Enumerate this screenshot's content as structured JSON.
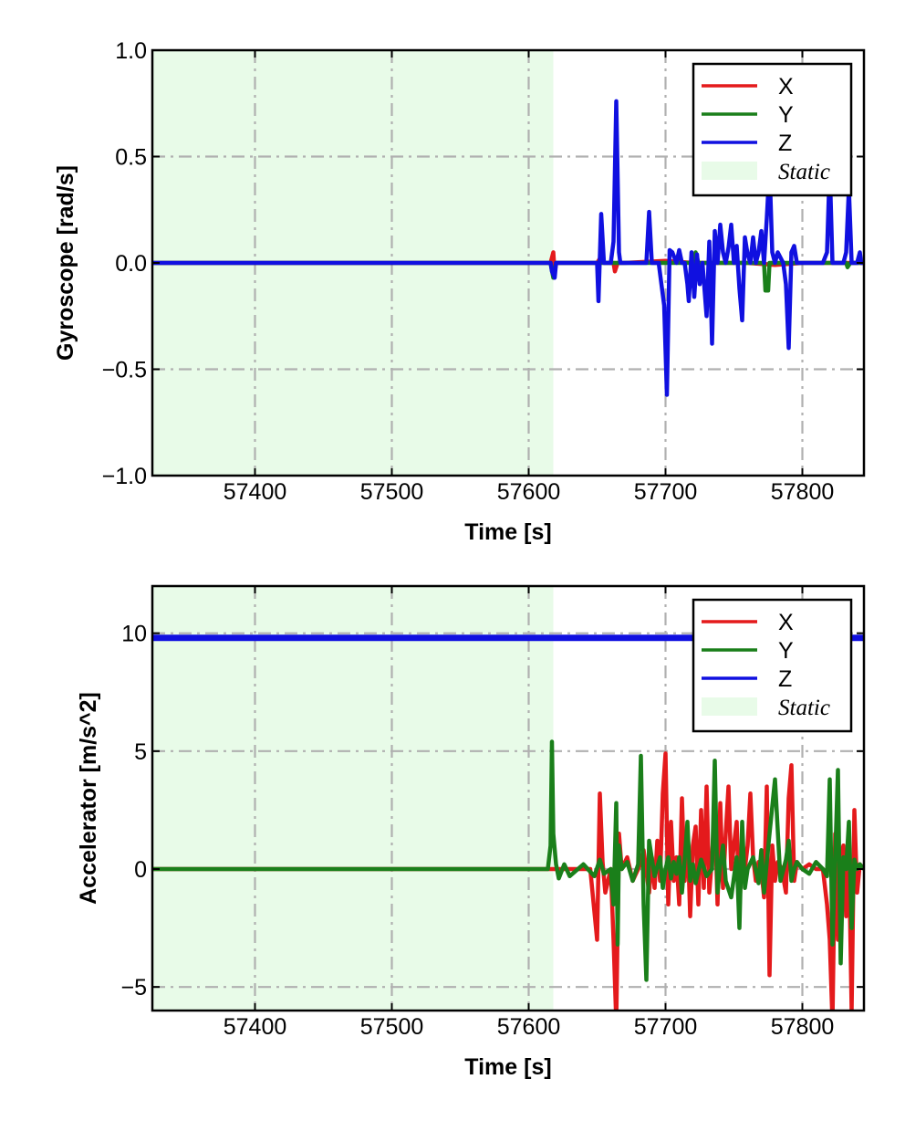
{
  "chart_data": [
    {
      "type": "line",
      "xlabel": "Time [s]",
      "ylabel": "Gyroscope [rad/s]",
      "xlim": [
        57325,
        57845
      ],
      "ylim": [
        -1.0,
        1.0
      ],
      "xticks": [
        57400,
        57500,
        57600,
        57700,
        57800
      ],
      "xtick_labels": [
        "57400",
        "57500",
        "57600",
        "57700",
        "57800"
      ],
      "yticks": [
        1.0,
        0.5,
        0.0,
        -0.5,
        -1.0
      ],
      "ytick_labels": [
        "1.0",
        "0.5",
        "0.0",
        "−0.5",
        "−1.0"
      ],
      "grid": true,
      "legend": "top-right",
      "legend_entries": [
        "X",
        "Y",
        "Z",
        "Static"
      ],
      "static_region": [
        57325,
        57618
      ],
      "series": [
        {
          "name": "X",
          "color": "#e41a1c",
          "x": [
            57325,
            57616,
            57618,
            57619,
            57620,
            57650,
            57652,
            57655,
            57662,
            57663,
            57665,
            57670,
            57700,
            57720,
            57740,
            57760,
            57780,
            57800,
            57820,
            57845
          ],
          "y": [
            0.0,
            0.0,
            0.05,
            -0.05,
            0.0,
            0.0,
            0.02,
            0.0,
            0.0,
            -0.04,
            0.0,
            0.0,
            0.01,
            0.0,
            0.0,
            0.0,
            -0.01,
            0.0,
            0.0,
            0.0
          ]
        },
        {
          "name": "Y",
          "color": "#1a7f1a",
          "x": [
            57325,
            57616,
            57618,
            57620,
            57700,
            57720,
            57722,
            57724,
            57760,
            57772,
            57773,
            57775,
            57776,
            57800,
            57832,
            57833,
            57835,
            57845
          ],
          "y": [
            0.0,
            0.0,
            -0.07,
            0.0,
            0.0,
            0.0,
            0.05,
            0.0,
            0.0,
            0.0,
            -0.13,
            -0.13,
            0.0,
            0.0,
            0.0,
            -0.02,
            0.0,
            0.0
          ],
          "color_hint": "green"
        },
        {
          "name": "Z",
          "color": "#1010e0",
          "x": [
            57325,
            57616,
            57617,
            57619,
            57620,
            57650,
            57651,
            57653,
            57655,
            57660,
            57662,
            57664,
            57666,
            57667,
            57670,
            57686,
            57688,
            57690,
            57692,
            57695,
            57699,
            57701,
            57703,
            57705,
            57708,
            57710,
            57712,
            57714,
            57716,
            57717,
            57719,
            57721,
            57723,
            57725,
            57727,
            57730,
            57732,
            57734,
            57736,
            57738,
            57740,
            57742,
            57744,
            57746,
            57748,
            57750,
            57752,
            57754,
            57756,
            57758,
            57760,
            57762,
            57764,
            57766,
            57768,
            57770,
            57772,
            57774,
            57776,
            57778,
            57780,
            57782,
            57786,
            57788,
            57790,
            57792,
            57794,
            57796,
            57800,
            57810,
            57815,
            57818,
            57820,
            57822,
            57825,
            57830,
            57832,
            57834,
            57836,
            57838,
            57840,
            57842,
            57843,
            57845
          ],
          "y": [
            0.0,
            0.0,
            -0.04,
            -0.07,
            0.0,
            0.0,
            -0.18,
            0.23,
            0.0,
            0.0,
            0.1,
            0.76,
            0.05,
            0.0,
            0.0,
            0.0,
            0.24,
            0.0,
            0.0,
            0.0,
            -0.2,
            -0.62,
            0.06,
            0.05,
            0.0,
            0.06,
            0.0,
            0.0,
            -0.1,
            -0.18,
            0.05,
            -0.16,
            0.04,
            -0.1,
            0.0,
            -0.25,
            0.1,
            -0.38,
            0.15,
            0.0,
            0.18,
            0.05,
            0.0,
            0.07,
            0.18,
            0.0,
            0.08,
            -0.12,
            -0.27,
            0.12,
            0.04,
            0.0,
            0.12,
            0.0,
            0.05,
            0.15,
            0.0,
            0.21,
            0.45,
            0.05,
            0.0,
            0.05,
            0.0,
            -0.1,
            -0.4,
            0.05,
            0.08,
            0.0,
            0.0,
            0.0,
            0.0,
            0.05,
            0.45,
            0.0,
            0.0,
            0.0,
            0.05,
            0.35,
            0.0,
            0.0,
            0.0,
            0.05,
            0.0,
            0.0
          ]
        }
      ]
    },
    {
      "type": "line",
      "xlabel": "Time [s]",
      "ylabel": "Accelerator [m/s^2]",
      "xlim": [
        57325,
        57845
      ],
      "ylim": [
        -6.0,
        12.0
      ],
      "xticks": [
        57400,
        57500,
        57600,
        57700,
        57800
      ],
      "xtick_labels": [
        "57400",
        "57500",
        "57600",
        "57700",
        "57800"
      ],
      "yticks": [
        10,
        5,
        0,
        -5
      ],
      "ytick_labels": [
        "10",
        "5",
        "0",
        "−5"
      ],
      "grid": true,
      "legend": "top-right",
      "legend_entries": [
        "X",
        "Y",
        "Z",
        "Static"
      ],
      "static_region": [
        57325,
        57618
      ],
      "series": [
        {
          "name": "X",
          "color": "#e41a1c",
          "x": [
            57325,
            57645,
            57650,
            57652,
            57654,
            57656,
            57660,
            57662,
            57664,
            57666,
            57668,
            57672,
            57676,
            57680,
            57684,
            57688,
            57690,
            57692,
            57694,
            57696,
            57698,
            57700,
            57702,
            57704,
            57706,
            57708,
            57710,
            57712,
            57714,
            57716,
            57718,
            57720,
            57722,
            57724,
            57726,
            57728,
            57730,
            57732,
            57734,
            57736,
            57738,
            57740,
            57742,
            57744,
            57746,
            57748,
            57750,
            57752,
            57754,
            57756,
            57758,
            57760,
            57762,
            57764,
            57766,
            57768,
            57770,
            57772,
            57774,
            57776,
            57778,
            57780,
            57782,
            57785,
            57788,
            57790,
            57792,
            57794,
            57796,
            57800,
            57805,
            57810,
            57815,
            57818,
            57820,
            57822,
            57824,
            57826,
            57828,
            57830,
            57832,
            57834,
            57836,
            57838,
            57840,
            57842,
            57845
          ],
          "y": [
            0.0,
            0.0,
            -3.0,
            3.2,
            0.3,
            -1.0,
            0.0,
            -3.0,
            -6.5,
            1.5,
            0.0,
            0.5,
            -0.5,
            0.0,
            0.8,
            -1.0,
            0.5,
            -0.8,
            1.2,
            -0.5,
            3.2,
            4.9,
            -1.5,
            2.0,
            -0.5,
            0.5,
            -1.5,
            3.0,
            -0.5,
            1.8,
            -2.0,
            1.0,
            1.8,
            -1.5,
            2.5,
            -0.8,
            3.5,
            -1.0,
            0.5,
            2.5,
            -1.5,
            2.8,
            -0.8,
            1.5,
            3.5,
            0.0,
            1.0,
            2.0,
            -1.8,
            1.2,
            0.0,
            1.0,
            3.2,
            0.5,
            -0.5,
            0.3,
            0.0,
            -1.2,
            3.5,
            -4.5,
            1.0,
            -0.5,
            0.3,
            0.0,
            -1.0,
            3.0,
            4.4,
            -0.5,
            0.3,
            0.0,
            0.2,
            0.0,
            0.0,
            -1.5,
            -3.0,
            -6.5,
            1.5,
            -3.0,
            0.5,
            1.0,
            -2.0,
            0.8,
            -6.0,
            2.5,
            -1.0,
            0.2,
            0.0
          ]
        },
        {
          "name": "Y",
          "color": "#1a7f1a",
          "x": [
            57325,
            57614,
            57616,
            57617,
            57618,
            57620,
            57622,
            57626,
            57630,
            57640,
            57648,
            57652,
            57655,
            57660,
            57662,
            57664,
            57665,
            57666,
            57668,
            57672,
            57676,
            57680,
            57682,
            57684,
            57686,
            57688,
            57692,
            57696,
            57698,
            57700,
            57702,
            57704,
            57706,
            57708,
            57710,
            57712,
            57714,
            57716,
            57718,
            57720,
            57722,
            57726,
            57730,
            57734,
            57736,
            57738,
            57740,
            57742,
            57744,
            57748,
            57752,
            57754,
            57756,
            57758,
            57760,
            57764,
            57768,
            57770,
            57772,
            57774,
            57776,
            57780,
            57784,
            57788,
            57790,
            57792,
            57794,
            57796,
            57800,
            57805,
            57810,
            57815,
            57818,
            57820,
            57822,
            57824,
            57826,
            57828,
            57830,
            57832,
            57834,
            57836,
            57838,
            57840,
            57842,
            57845
          ],
          "y": [
            0.0,
            0.0,
            1.0,
            5.4,
            1.5,
            0.2,
            -0.4,
            0.2,
            -0.3,
            0.2,
            -0.3,
            0.4,
            -0.2,
            0.0,
            -1.5,
            2.8,
            -3.2,
            1.0,
            0.0,
            0.3,
            -0.5,
            0.2,
            4.8,
            -1.5,
            -4.7,
            1.2,
            -0.3,
            0.5,
            -0.8,
            0.0,
            0.5,
            -0.4,
            0.3,
            -0.2,
            0.5,
            -1.0,
            0.4,
            2.0,
            -0.5,
            0.2,
            -0.6,
            0.4,
            -0.3,
            0.0,
            4.6,
            -1.0,
            0.2,
            1.0,
            -0.5,
            -1.2,
            0.5,
            -2.5,
            2.0,
            -0.8,
            0.0,
            0.5,
            -0.6,
            0.8,
            -1.0,
            0.3,
            1.5,
            3.8,
            -0.5,
            0.4,
            1.2,
            -0.5,
            0.0,
            0.3,
            0.0,
            -0.2,
            0.3,
            0.0,
            -0.3,
            3.8,
            -3.2,
            0.5,
            4.2,
            -4.0,
            0.5,
            0.0,
            2.0,
            -2.5,
            0.4,
            0.0,
            0.2,
            0.0
          ]
        },
        {
          "name": "Z",
          "color": "#1010e0",
          "x": [
            57325,
            57400,
            57500,
            57600,
            57700,
            57800,
            57845
          ],
          "y": [
            9.8,
            9.8,
            9.8,
            9.8,
            9.8,
            9.8,
            9.8
          ]
        }
      ]
    }
  ]
}
